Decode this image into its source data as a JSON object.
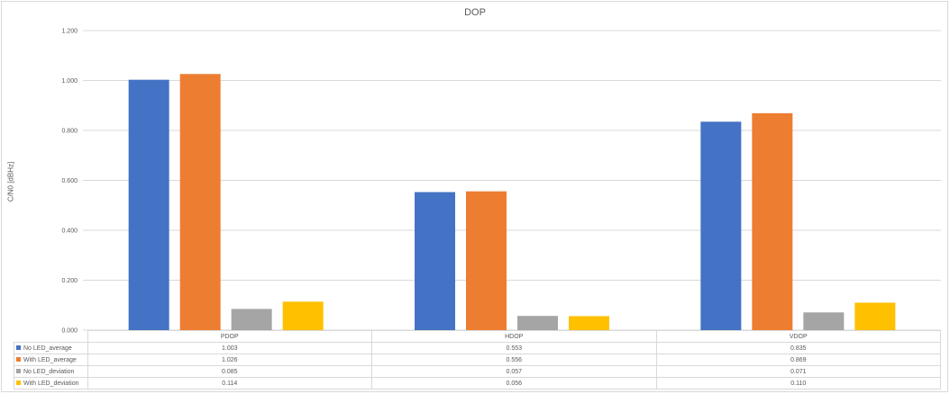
{
  "chart_data": {
    "type": "bar",
    "title": "DOP",
    "ylabel": "C/N0 [dBHz]",
    "xlabel": "",
    "ylim": [
      0,
      1.2
    ],
    "yticks": [
      "0.000",
      "0.200",
      "0.400",
      "0.600",
      "0.800",
      "1.000",
      "1.200"
    ],
    "grid": true,
    "legend": "data-table",
    "categories": [
      "PDOP",
      "HDOP",
      "VDOP"
    ],
    "series": [
      {
        "name": "No LED_average",
        "color": "#4472c4",
        "values": [
          1.003,
          0.553,
          0.835
        ],
        "labels": [
          "1.003",
          "0.553",
          "0.835"
        ]
      },
      {
        "name": "With LED_average",
        "color": "#ed7d31",
        "values": [
          1.026,
          0.556,
          0.869
        ],
        "labels": [
          "1.026",
          "0.556",
          "0.869"
        ]
      },
      {
        "name": "No LED_deviation",
        "color": "#a5a5a5",
        "values": [
          0.085,
          0.057,
          0.071
        ],
        "labels": [
          "0.085",
          "0.057",
          "0.071"
        ]
      },
      {
        "name": "With LED_deviation",
        "color": "#ffc000",
        "values": [
          0.114,
          0.056,
          0.11
        ],
        "labels": [
          "0.114",
          "0.056",
          "0.110"
        ]
      }
    ]
  }
}
